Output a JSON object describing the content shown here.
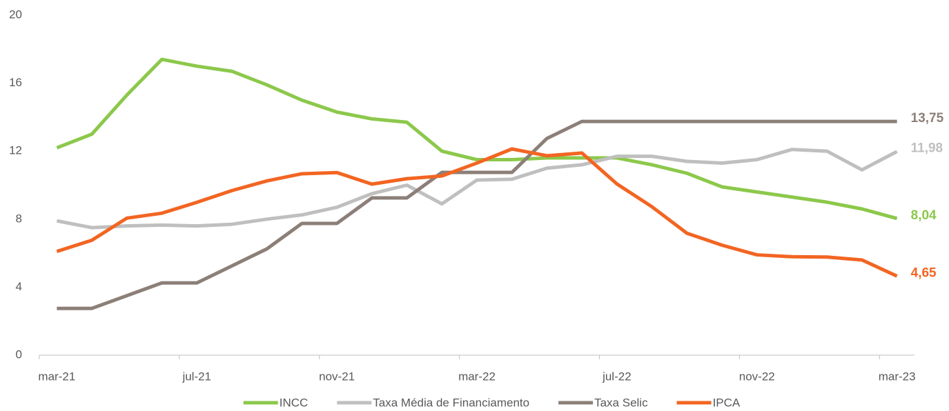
{
  "chart_data": {
    "type": "line",
    "categories": [
      "mar-21",
      null,
      null,
      null,
      "jul-21",
      null,
      null,
      null,
      "nov-21",
      null,
      null,
      null,
      "mar-22",
      null,
      null,
      null,
      "jul-22",
      null,
      null,
      null,
      "nov-22",
      null,
      null,
      null,
      "mar-23"
    ],
    "series": [
      {
        "name": "INCC",
        "color": "#8cc84b",
        "values": [
          12.2,
          13.0,
          15.3,
          17.4,
          17.0,
          16.7,
          15.9,
          15.0,
          14.3,
          13.9,
          13.7,
          12.0,
          11.5,
          11.5,
          11.6,
          11.6,
          11.6,
          11.2,
          10.7,
          9.9,
          9.6,
          9.3,
          9.0,
          8.6,
          8.04
        ],
        "value_labels": [
          null,
          null,
          null,
          null,
          null,
          null,
          null,
          null,
          null,
          null,
          null,
          null,
          null,
          null,
          null,
          null,
          null,
          null,
          null,
          null,
          null,
          null,
          null,
          null,
          "8,04"
        ]
      },
      {
        "name": "Taxa Média de Financiamento",
        "color": "#bfbfbf",
        "values": [
          7.9,
          7.5,
          7.6,
          7.65,
          7.6,
          7.7,
          8.0,
          8.25,
          8.7,
          9.5,
          10.0,
          8.9,
          10.3,
          10.35,
          11.0,
          11.2,
          11.7,
          11.7,
          11.4,
          11.3,
          11.5,
          12.1,
          12.0,
          10.9,
          11.98
        ],
        "value_labels": [
          null,
          null,
          null,
          null,
          null,
          null,
          null,
          null,
          null,
          null,
          null,
          null,
          null,
          null,
          null,
          null,
          null,
          null,
          null,
          null,
          null,
          null,
          null,
          null,
          "11,98"
        ]
      },
      {
        "name": "Taxa Selic",
        "color": "#8c7f78",
        "values": [
          2.75,
          2.75,
          3.5,
          4.25,
          4.25,
          5.25,
          6.25,
          7.75,
          7.75,
          9.25,
          9.25,
          10.75,
          10.75,
          10.75,
          12.75,
          13.75,
          13.75,
          13.75,
          13.75,
          13.75,
          13.75,
          13.75,
          13.75,
          13.75,
          13.75
        ],
        "value_labels": [
          null,
          null,
          null,
          null,
          null,
          null,
          null,
          null,
          null,
          null,
          null,
          null,
          null,
          null,
          null,
          null,
          null,
          null,
          null,
          null,
          null,
          null,
          null,
          null,
          "13,75"
        ]
      },
      {
        "name": "IPCA",
        "color": "#f26522",
        "values": [
          6.1,
          6.76,
          8.06,
          8.35,
          8.99,
          9.68,
          10.25,
          10.67,
          10.74,
          10.06,
          10.38,
          10.54,
          11.3,
          12.13,
          11.73,
          11.89,
          10.07,
          8.73,
          7.17,
          6.47,
          5.9,
          5.79,
          5.77,
          5.6,
          4.65
        ],
        "value_labels": [
          null,
          null,
          null,
          null,
          null,
          null,
          null,
          null,
          null,
          null,
          null,
          null,
          null,
          null,
          null,
          null,
          null,
          null,
          null,
          null,
          null,
          null,
          null,
          null,
          "4,65"
        ]
      }
    ],
    "ylim": [
      0,
      20
    ],
    "yticks": [
      0,
      4,
      8,
      12,
      16,
      20
    ],
    "grid": false,
    "legend": "bottom"
  }
}
